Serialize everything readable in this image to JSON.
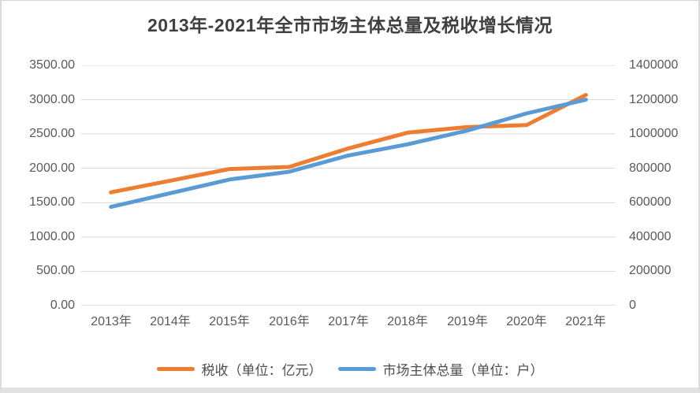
{
  "title": "2013年-2021年全市市场主体总量及税收增长情况",
  "chart_data": {
    "type": "line",
    "categories": [
      "2013年",
      "2014年",
      "2015年",
      "2016年",
      "2017年",
      "2018年",
      "2019年",
      "2020年",
      "2021年"
    ],
    "series": [
      {
        "name": "税收（单位：亿元）",
        "axis": "left",
        "color": "#ED7D31",
        "values": [
          1650,
          1820,
          1990,
          2020,
          2290,
          2520,
          2600,
          2630,
          3070
        ]
      },
      {
        "name": "市场主体总量（单位：户）",
        "axis": "right",
        "color": "#5B9BD5",
        "values": [
          575000,
          655000,
          735000,
          780000,
          875000,
          940000,
          1020000,
          1120000,
          1200000
        ]
      }
    ],
    "left_axis": {
      "min": 0,
      "max": 3500,
      "ticks": [
        "3500.00",
        "3000.00",
        "2500.00",
        "2000.00",
        "1500.00",
        "1000.00",
        "500.00",
        "0.00"
      ]
    },
    "right_axis": {
      "min": 0,
      "max": 1400000,
      "ticks": [
        "1400000",
        "1200000",
        "1000000",
        "800000",
        "600000",
        "400000",
        "200000",
        "0"
      ]
    },
    "grid": true,
    "legend_position": "bottom"
  },
  "colors": {
    "grid": "#d9d9d9",
    "axis_line": "#c0c0c0",
    "tick_text": "#595959",
    "title_text": "#404040"
  }
}
